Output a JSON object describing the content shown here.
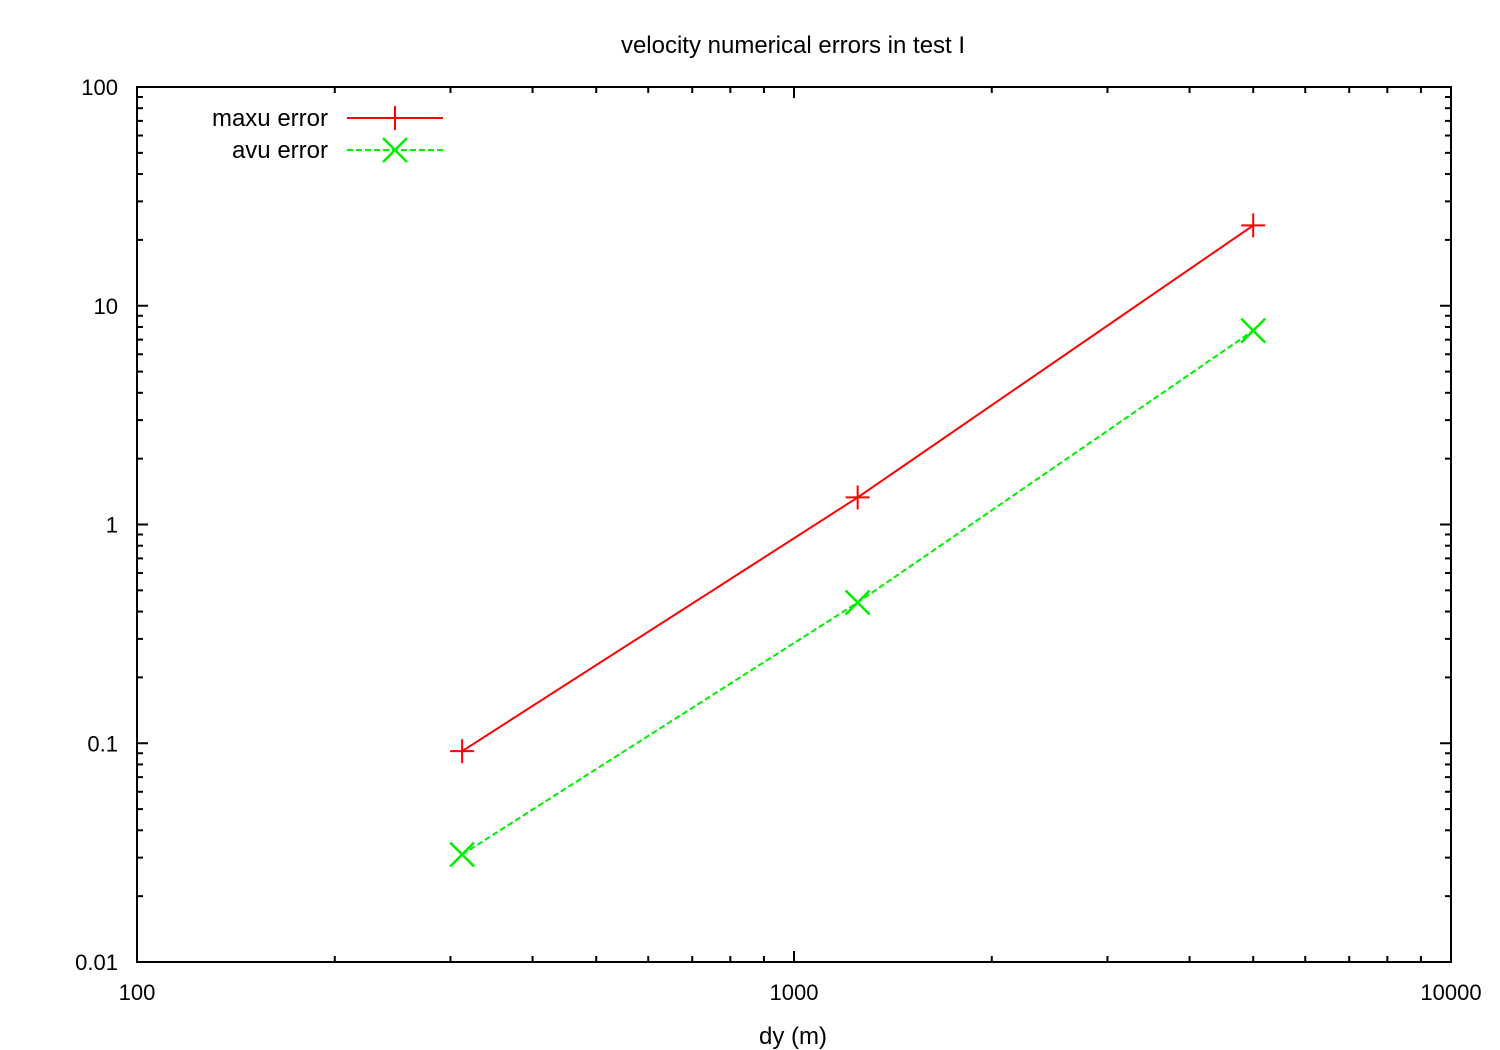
{
  "chart_data": {
    "type": "line",
    "title": "velocity   numerical errors in test I",
    "xlabel": "dy  (m)",
    "ylabel": "",
    "xscale": "log",
    "yscale": "log",
    "xlim": [
      100,
      10000
    ],
    "ylim": [
      0.01,
      100
    ],
    "xtick_labels": [
      "100",
      "1000",
      "10000"
    ],
    "xtick_values": [
      100,
      1000,
      10000
    ],
    "ytick_labels": [
      "0.01",
      "0.1",
      "1",
      "10",
      "100"
    ],
    "ytick_values": [
      0.01,
      0.1,
      1,
      10,
      100
    ],
    "grid": false,
    "legend_position": "top-left",
    "series": [
      {
        "name": "maxu error",
        "color": "#ff0000",
        "line_style": "solid",
        "marker": "plus",
        "x": [
          312.5,
          1250,
          5000
        ],
        "y": [
          0.092,
          1.33,
          23.3
        ]
      },
      {
        "name": "avu error",
        "color": "#00ee00",
        "line_style": "dashed",
        "marker": "cross",
        "x": [
          312.5,
          1250,
          5000
        ],
        "y": [
          0.031,
          0.44,
          7.7
        ]
      }
    ]
  }
}
